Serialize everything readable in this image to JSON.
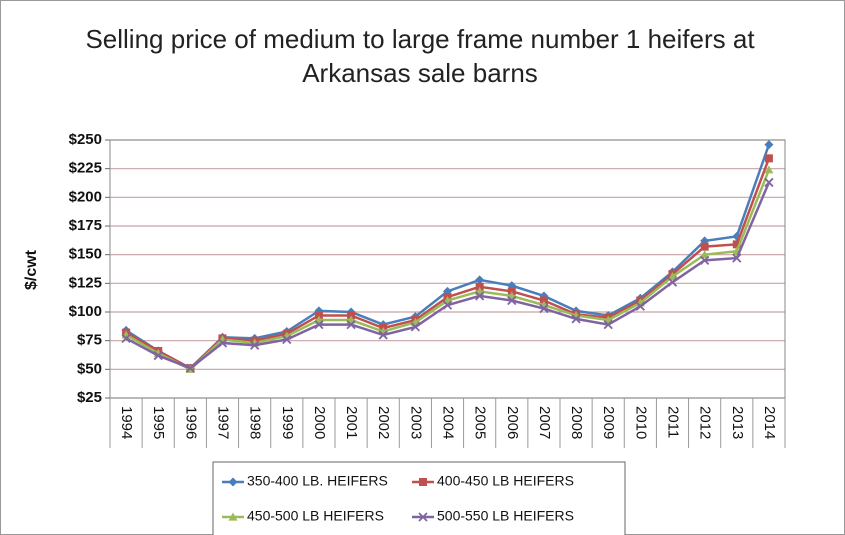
{
  "chart_data": {
    "type": "line",
    "title": "Selling price of medium to large frame number 1 heifers at Arkansas sale barns",
    "ylabel": "$/cwt",
    "categories": [
      "1994",
      "1995",
      "1996",
      "1997",
      "1998",
      "1999",
      "2000",
      "2001",
      "2002",
      "2003",
      "2004",
      "2005",
      "2006",
      "2007",
      "2008",
      "2009",
      "2010",
      "2011",
      "2012",
      "2013",
      "2014"
    ],
    "series": [
      {
        "name": "350-400 LB. HEIFERS",
        "color": "#4a7ebb",
        "marker": "diamond",
        "values": [
          84,
          66,
          51,
          78,
          77,
          83,
          101,
          100,
          89,
          96,
          118,
          128,
          123,
          114,
          101,
          97,
          112,
          135,
          162,
          166,
          246
        ]
      },
      {
        "name": "400-450 LB HEIFERS",
        "color": "#c0504d",
        "marker": "square",
        "values": [
          82,
          66,
          51,
          77,
          75,
          81,
          97,
          97,
          86,
          93,
          113,
          122,
          118,
          110,
          98,
          95,
          110,
          133,
          157,
          159,
          234
        ]
      },
      {
        "name": "450-500 LB HEIFERS",
        "color": "#9bbb59",
        "marker": "triangle",
        "values": [
          80,
          64,
          50,
          76,
          73,
          79,
          93,
          93,
          83,
          91,
          110,
          118,
          114,
          106,
          97,
          93,
          108,
          131,
          150,
          153,
          224
        ]
      },
      {
        "name": "500-550 LB HEIFERS",
        "color": "#8064a2",
        "marker": "x",
        "values": [
          77,
          62,
          51,
          73,
          71,
          76,
          89,
          89,
          80,
          87,
          106,
          114,
          110,
          103,
          94,
          89,
          105,
          126,
          145,
          147,
          213
        ]
      }
    ],
    "ylim": [
      25,
      250
    ],
    "yticks": [
      {
        "value": 25,
        "label": "$25"
      },
      {
        "value": 50,
        "label": "$50"
      },
      {
        "value": 75,
        "label": "$75"
      },
      {
        "value": 100,
        "label": "$100"
      },
      {
        "value": 125,
        "label": "$125"
      },
      {
        "value": 150,
        "label": "$150"
      },
      {
        "value": 175,
        "label": "$175"
      },
      {
        "value": 200,
        "label": "$200"
      },
      {
        "value": 225,
        "label": "$225"
      },
      {
        "value": 250,
        "label": "$250"
      }
    ],
    "grid": true,
    "grid_color": "#c8a3a6",
    "legend": "bottom"
  }
}
